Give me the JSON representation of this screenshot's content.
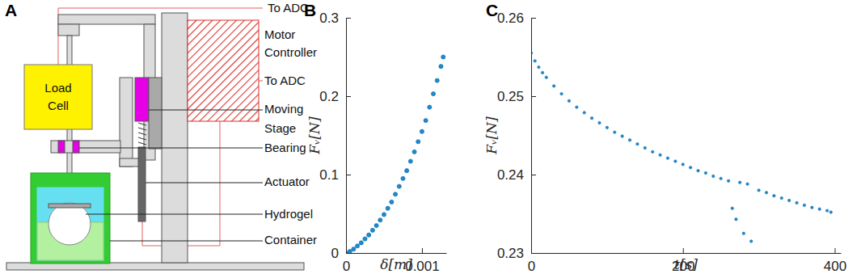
{
  "diagram": {
    "panel_label": "A",
    "labels": [
      {
        "lines": [
          "To ADC"
        ]
      },
      {
        "lines": [
          "Motor",
          "Controller"
        ]
      },
      {
        "lines": [
          "To ADC"
        ]
      },
      {
        "lines": [
          "Moving",
          "Stage"
        ]
      },
      {
        "lines": [
          "Bearing"
        ]
      },
      {
        "lines": [
          "Actuator"
        ]
      },
      {
        "lines": [
          "Hydrogel"
        ]
      },
      {
        "lines": [
          "Container"
        ]
      },
      {
        "lines": [
          "Load",
          "Cell"
        ]
      }
    ]
  },
  "chart_data": [
    {
      "type": "scatter",
      "title": "B",
      "x_label": "δ[m]",
      "y_label": "Fᵥ[N]",
      "x": [
        0,
        5e-05,
        0.0001,
        0.00015,
        0.0002,
        0.00025,
        0.0003,
        0.00035,
        0.0004,
        0.00045,
        0.0005,
        0.00055,
        0.0006,
        0.00065,
        0.0007,
        0.00075,
        0.0008,
        0.00085,
        0.0009,
        0.00095,
        0.001,
        0.00105,
        0.0011,
        0.00115,
        0.0012,
        0.00125,
        0.00128
      ],
      "values": [
        0,
        0.002,
        0.005,
        0.009,
        0.013,
        0.018,
        0.023,
        0.029,
        0.035,
        0.042,
        0.049,
        0.057,
        0.065,
        0.075,
        0.085,
        0.095,
        0.105,
        0.117,
        0.129,
        0.142,
        0.155,
        0.169,
        0.186,
        0.203,
        0.22,
        0.238,
        0.25
      ],
      "color": "#0072bd",
      "marker": "circle",
      "xlim": [
        0,
        0.00132
      ],
      "xticks": [
        0,
        0.001
      ],
      "ylim": [
        0,
        0.3
      ],
      "yticks": [
        0,
        0.1,
        0.2,
        0.3
      ]
    },
    {
      "type": "scatter",
      "title": "C",
      "x_label": "t[s]",
      "y_label": "Fᵥ[N]",
      "x": [
        0,
        5,
        10,
        15,
        20,
        30,
        40,
        50,
        60,
        70,
        80,
        90,
        100,
        110,
        120,
        130,
        140,
        150,
        160,
        170,
        180,
        190,
        200,
        210,
        220,
        230,
        240,
        250,
        260,
        265,
        270,
        275,
        280,
        285,
        290,
        300,
        310,
        320,
        330,
        340,
        350,
        360,
        370,
        380,
        390,
        395
      ],
      "values": [
        0.2555,
        0.2545,
        0.2537,
        0.253,
        0.2524,
        0.2513,
        0.2503,
        0.2494,
        0.2486,
        0.2479,
        0.2472,
        0.2466,
        0.246,
        0.2454,
        0.2449,
        0.2444,
        0.2439,
        0.2434,
        0.2429,
        0.2425,
        0.2421,
        0.2417,
        0.2413,
        0.2409,
        0.2405,
        0.2402,
        0.2398,
        0.2395,
        0.2392,
        0.2357,
        0.2343,
        0.239,
        0.2325,
        0.2388,
        0.2315,
        0.238,
        0.2377,
        0.2373,
        0.237,
        0.2367,
        0.2364,
        0.2361,
        0.2358,
        0.2356,
        0.2354,
        0.2352
      ],
      "color": "#0072bd",
      "marker": "circle",
      "xlim": [
        0,
        408
      ],
      "xticks": [
        0,
        200,
        400
      ],
      "ylim": [
        0.23,
        0.26
      ],
      "yticks": [
        0.23,
        0.24,
        0.25,
        0.26
      ]
    }
  ]
}
